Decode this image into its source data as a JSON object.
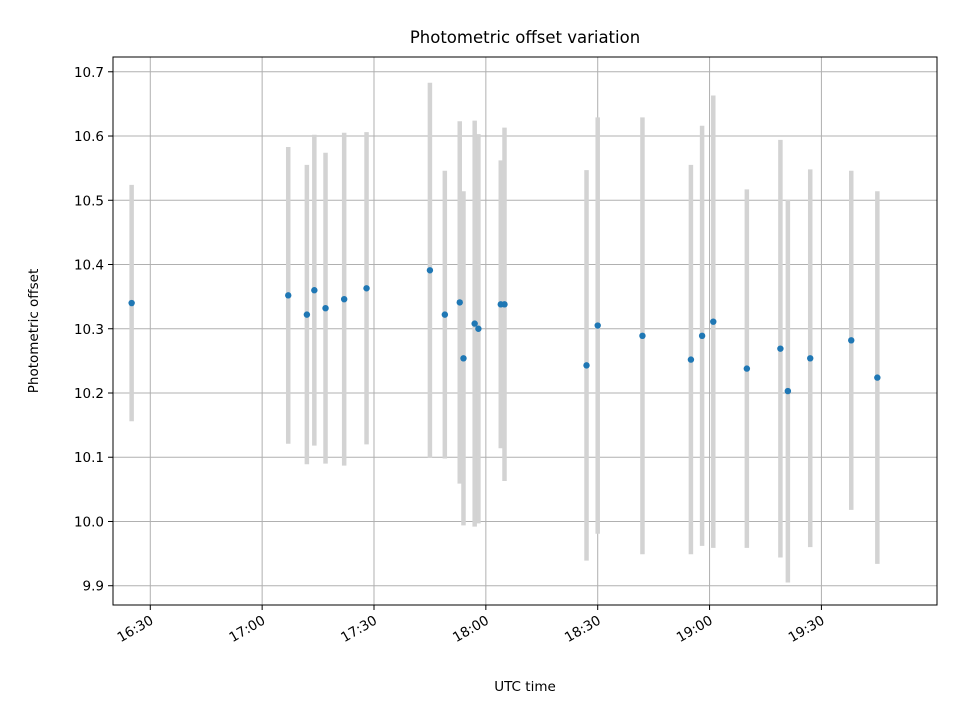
{
  "chart_data": {
    "type": "scatter",
    "title": "Photometric offset variation",
    "xlabel": "UTC time",
    "ylabel": "Photometric offset",
    "xlim": [
      "16:20",
      "20:01"
    ],
    "ylim": [
      9.87,
      10.723
    ],
    "xticks": [
      "16:30",
      "17:00",
      "17:30",
      "18:00",
      "18:30",
      "19:00",
      "19:30"
    ],
    "yticks": [
      "9.9",
      "10.0",
      "10.1",
      "10.2",
      "10.3",
      "10.4",
      "10.5",
      "10.6",
      "10.7"
    ],
    "grid": true,
    "colors": {
      "point": "#1f77b4",
      "errorbar": "#d3d3d3",
      "grid": "#b0b0b0"
    },
    "points": [
      {
        "x": "16:25",
        "y": 10.34,
        "err": 0.184
      },
      {
        "x": "17:07",
        "y": 10.352,
        "err": 0.231
      },
      {
        "x": "17:12",
        "y": 10.322,
        "err": 0.233
      },
      {
        "x": "17:14",
        "y": 10.36,
        "err": 0.242
      },
      {
        "x": "17:17",
        "y": 10.332,
        "err": 0.242
      },
      {
        "x": "17:22",
        "y": 10.346,
        "err": 0.259
      },
      {
        "x": "17:28",
        "y": 10.363,
        "err": 0.243
      },
      {
        "x": "17:45",
        "y": 10.391,
        "err": 0.292
      },
      {
        "x": "17:49",
        "y": 10.322,
        "err": 0.224
      },
      {
        "x": "17:53",
        "y": 10.341,
        "err": 0.282
      },
      {
        "x": "17:54",
        "y": 10.254,
        "err": 0.26
      },
      {
        "x": "17:57",
        "y": 10.308,
        "err": 0.316
      },
      {
        "x": "17:58",
        "y": 10.3,
        "err": 0.303
      },
      {
        "x": "18:04",
        "y": 10.338,
        "err": 0.224
      },
      {
        "x": "18:05",
        "y": 10.338,
        "err": 0.275
      },
      {
        "x": "18:27",
        "y": 10.243,
        "err": 0.304
      },
      {
        "x": "18:30",
        "y": 10.305,
        "err": 0.324
      },
      {
        "x": "18:42",
        "y": 10.289,
        "err": 0.34
      },
      {
        "x": "18:55",
        "y": 10.252,
        "err": 0.303
      },
      {
        "x": "18:58",
        "y": 10.289,
        "err": 0.327
      },
      {
        "x": "19:01",
        "y": 10.311,
        "err": 0.352
      },
      {
        "x": "19:10",
        "y": 10.238,
        "err": 0.279
      },
      {
        "x": "19:19",
        "y": 10.269,
        "err": 0.325
      },
      {
        "x": "19:21",
        "y": 10.203,
        "err": 0.298
      },
      {
        "x": "19:27",
        "y": 10.254,
        "err": 0.294
      },
      {
        "x": "19:38",
        "y": 10.282,
        "err": 0.264
      },
      {
        "x": "19:45",
        "y": 10.224,
        "err": 0.29
      }
    ]
  }
}
